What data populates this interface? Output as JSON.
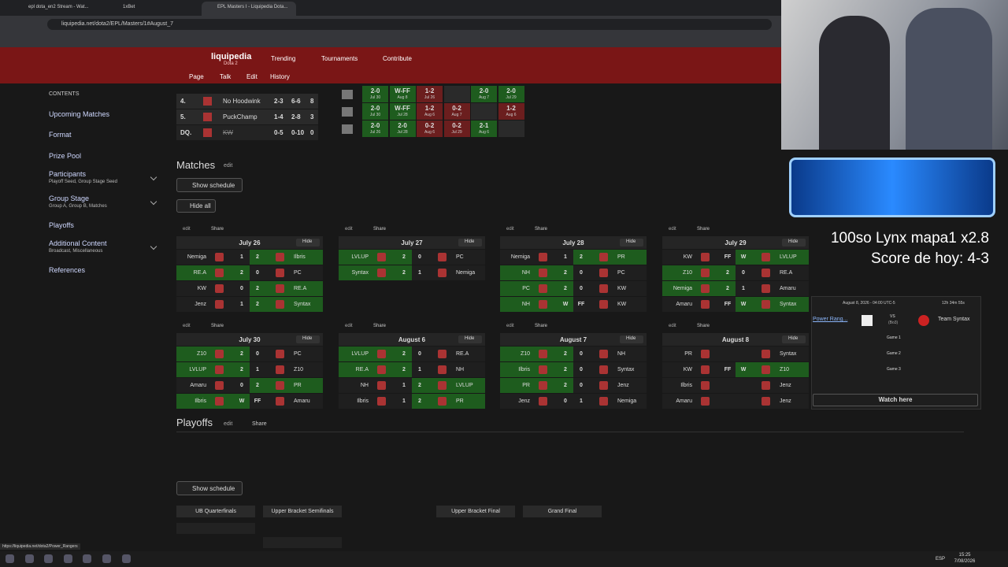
{
  "browser": {
    "tabs": [
      "epl dota_en2 Stream - Wat...",
      "1xBet",
      "EPL Masters I - Liquipedia Dota..."
    ],
    "url": "liquipedia.net/dota2/EPL/Masters/1#August_7",
    "status_url": "https://liquipedia.net/dota2/Power_Rangers"
  },
  "nav": {
    "logo": "liquipedia",
    "game": "Dota 2",
    "menu": [
      "Trending",
      "Tournaments",
      "Contribute"
    ],
    "tools": [
      "Page",
      "Talk",
      "Edit",
      "History"
    ]
  },
  "sidebar": {
    "heading": "CONTENTS",
    "items": [
      {
        "label": "Upcoming Matches"
      },
      {
        "label": "Format"
      },
      {
        "label": "Prize Pool"
      },
      {
        "label": "Participants",
        "sub": "Playoff Seed, Group Stage Seed"
      },
      {
        "label": "Group Stage",
        "sub": "Group A, Group B, Matches"
      },
      {
        "label": "Playoffs"
      },
      {
        "label": "Additional Content",
        "sub": "Broadcast, Miscellaneous"
      },
      {
        "label": "References"
      }
    ]
  },
  "standings": [
    {
      "rank": "4.",
      "team": "No Hoodwink",
      "series": "2-3",
      "games": "6-6",
      "points": 8
    },
    {
      "rank": "5.",
      "team": "PuckChamp",
      "series": "1-4",
      "games": "2-8",
      "points": 3
    },
    {
      "rank": "DQ.",
      "team": "KW",
      "series": "0-5",
      "games": "0-10",
      "points": 0
    }
  ],
  "crosstable": [
    [
      {
        "score": "2-0",
        "date": "Jul 30"
      },
      {
        "score": "W-FF",
        "date": "Aug 8"
      },
      {
        "score": "1-2",
        "date": "Jul 26"
      },
      null,
      {
        "score": "2-0",
        "date": "Aug 7"
      },
      {
        "score": "2-0",
        "date": "Jul 29"
      }
    ],
    [
      {
        "score": "2-0",
        "date": "Jul 30"
      },
      {
        "score": "W-FF",
        "date": "Jul 28"
      },
      {
        "score": "1-2",
        "date": "Aug 6"
      },
      {
        "score": "0-2",
        "date": "Aug 7"
      },
      null,
      {
        "score": "1-2",
        "date": "Aug 6"
      }
    ],
    [
      {
        "score": "2-0",
        "date": "Jul 26"
      },
      {
        "score": "2-0",
        "date": "Jul 28"
      },
      {
        "score": "0-2",
        "date": "Aug 6"
      },
      {
        "score": "0-2",
        "date": "Jul 29"
      },
      {
        "score": "2-1",
        "date": "Aug 6"
      },
      null
    ]
  ],
  "labels": {
    "edit": "edit",
    "share": "Share",
    "hide": "Hide",
    "show_schedule": "Show schedule",
    "hide_all": "Hide all"
  },
  "matches_heading": "Matches",
  "matchdays": [
    {
      "date": "July 26",
      "matches": [
        {
          "t1": "Nemiga",
          "s1": 1,
          "s2": 2,
          "t2": "Ilbris",
          "win": 2
        },
        {
          "t1": "RE.A",
          "s1": 2,
          "s2": 0,
          "t2": "PC",
          "win": 1
        },
        {
          "t1": "KW",
          "s1": 0,
          "s2": 2,
          "t2": "RE.A",
          "win": 2
        },
        {
          "t1": "Jenz",
          "s1": 1,
          "s2": 2,
          "t2": "Syntax",
          "win": 2
        }
      ]
    },
    {
      "date": "July 27",
      "matches": [
        {
          "t1": "LVLUP",
          "s1": 2,
          "s2": 0,
          "t2": "PC",
          "win": 1
        },
        {
          "t1": "Syntax",
          "s1": 2,
          "s2": 1,
          "t2": "Nemiga",
          "win": 1
        }
      ]
    },
    {
      "date": "July 28",
      "matches": [
        {
          "t1": "Nemiga",
          "s1": 1,
          "s2": 2,
          "t2": "PR",
          "win": 2
        },
        {
          "t1": "NH",
          "s1": 2,
          "s2": 0,
          "t2": "PC",
          "win": 1
        },
        {
          "t1": "PC",
          "s1": 2,
          "s2": 0,
          "t2": "KW",
          "win": 1
        },
        {
          "t1": "NH",
          "s1": "W",
          "s2": "FF",
          "t2": "KW",
          "win": 1
        }
      ]
    },
    {
      "date": "July 29",
      "matches": [
        {
          "t1": "KW",
          "s1": "FF",
          "s2": "W",
          "t2": "LVLUP",
          "win": 2
        },
        {
          "t1": "Z10",
          "s1": 2,
          "s2": 0,
          "t2": "RE.A",
          "win": 1
        },
        {
          "t1": "Nemiga",
          "s1": 2,
          "s2": 1,
          "t2": "Amaru",
          "win": 1
        },
        {
          "t1": "Amaru",
          "s1": "FF",
          "s2": "W",
          "t2": "Syntax",
          "win": 2
        }
      ]
    },
    {
      "date": "July 30",
      "matches": [
        {
          "t1": "Z10",
          "s1": 2,
          "s2": 0,
          "t2": "PC",
          "win": 1
        },
        {
          "t1": "LVLUP",
          "s1": 2,
          "s2": 1,
          "t2": "Z10",
          "win": 1
        },
        {
          "t1": "Amaru",
          "s1": 0,
          "s2": 2,
          "t2": "PR",
          "win": 2
        },
        {
          "t1": "Ilbris",
          "s1": "W",
          "s2": "FF",
          "t2": "Amaru",
          "win": 1
        }
      ]
    },
    {
      "date": "August 6",
      "matches": [
        {
          "t1": "LVLUP",
          "s1": 2,
          "s2": 0,
          "t2": "RE.A",
          "win": 1
        },
        {
          "t1": "RE.A",
          "s1": 2,
          "s2": 1,
          "t2": "NH",
          "win": 1
        },
        {
          "t1": "NH",
          "s1": 1,
          "s2": 2,
          "t2": "LVLUP",
          "win": 2
        },
        {
          "t1": "Ilbris",
          "s1": 1,
          "s2": 2,
          "t2": "PR",
          "win": 2
        }
      ]
    },
    {
      "date": "August 7",
      "matches": [
        {
          "t1": "Z10",
          "s1": 2,
          "s2": 0,
          "t2": "NH",
          "win": 1
        },
        {
          "t1": "Ilbris",
          "s1": 2,
          "s2": 0,
          "t2": "Syntax",
          "win": 1
        },
        {
          "t1": "PR",
          "s1": 2,
          "s2": 0,
          "t2": "Jenz",
          "win": 1
        },
        {
          "t1": "Jenz",
          "s1": 0,
          "s2": 1,
          "t2": "Nemiga",
          "win": null
        }
      ]
    },
    {
      "date": "August 8",
      "matches": [
        {
          "t1": "PR",
          "s1": null,
          "s2": null,
          "t2": "Syntax",
          "win": null
        },
        {
          "t1": "KW",
          "s1": "FF",
          "s2": "W",
          "t2": "Z10",
          "win": 2
        },
        {
          "t1": "Ilbris",
          "s1": null,
          "s2": null,
          "t2": "Jenz",
          "win": null
        },
        {
          "t1": "Amaru",
          "s1": null,
          "s2": null,
          "t2": "Jenz",
          "win": null
        }
      ]
    }
  ],
  "popup": {
    "time": "August 8, 2026 - 04:00 UTC-5",
    "countdown": "12h 34m 55s",
    "team1": "Power Rang...",
    "vs": "VS",
    "format": "(Bo3)",
    "team2": "Team Syntax",
    "games": [
      "Game 1",
      "Game 2",
      "Game 3"
    ],
    "watch": "Watch here"
  },
  "overlay": {
    "line1": "100so Lynx mapa1 x2.8",
    "line2": "Score de hoy: 4-3"
  },
  "playoffs": {
    "heading": "Playoffs",
    "rounds": [
      "UB Quarterfinals",
      "Upper Bracket Semifinals",
      "Upper Bracket Final",
      "Grand Final"
    ]
  },
  "taskbar": {
    "lang": "ESP",
    "time": "15:25",
    "date": "7/08/2026"
  }
}
